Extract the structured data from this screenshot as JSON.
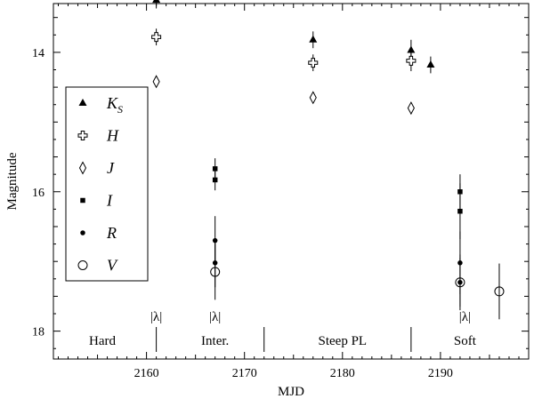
{
  "chart_data": {
    "type": "scatter",
    "xlabel": "MJD",
    "ylabel": "Magnitude",
    "xlim": [
      2150.5,
      2199
    ],
    "ylim": [
      18.4,
      13.3
    ],
    "y_inverted": true,
    "x_ticks": [
      2160,
      2170,
      2180,
      2190
    ],
    "y_ticks": [
      14,
      16,
      18
    ],
    "grid": false,
    "legend_placement": "left",
    "series": [
      {
        "name": "K",
        "subscript": "S",
        "marker": "filled-triangle",
        "points": [
          {
            "x": 2161,
            "y": 13.25,
            "err": 0.12
          },
          {
            "x": 2177,
            "y": 13.82,
            "err": 0.12
          },
          {
            "x": 2187,
            "y": 13.97,
            "err": 0.15
          },
          {
            "x": 2189,
            "y": 14.18,
            "err": 0.12
          }
        ]
      },
      {
        "name": "H",
        "marker": "open-cross",
        "points": [
          {
            "x": 2161,
            "y": 13.78,
            "err": 0.12
          },
          {
            "x": 2177,
            "y": 14.15,
            "err": 0.12
          },
          {
            "x": 2187,
            "y": 14.12,
            "err": 0.15
          }
        ]
      },
      {
        "name": "J",
        "marker": "open-diamond",
        "points": [
          {
            "x": 2161,
            "y": 14.42,
            "err": 0
          },
          {
            "x": 2177,
            "y": 14.65,
            "err": 0
          },
          {
            "x": 2187,
            "y": 14.8,
            "err": 0
          }
        ]
      },
      {
        "name": "I",
        "marker": "filled-square",
        "points": [
          {
            "x": 2167,
            "y": 15.67,
            "err": 0.15
          },
          {
            "x": 2167,
            "y": 15.83,
            "err": 0.15
          },
          {
            "x": 2192,
            "y": 16.0,
            "err": 0.25
          },
          {
            "x": 2192,
            "y": 16.28,
            "err": 0.4
          }
        ]
      },
      {
        "name": "R",
        "marker": "filled-circle",
        "points": [
          {
            "x": 2167,
            "y": 16.7,
            "err": 0.35
          },
          {
            "x": 2167,
            "y": 17.02,
            "err": 0.35
          },
          {
            "x": 2192,
            "y": 17.02,
            "err": 0.45
          },
          {
            "x": 2192,
            "y": 17.3,
            "err": 0.35
          }
        ]
      },
      {
        "name": "V",
        "marker": "open-circle",
        "points": [
          {
            "x": 2167,
            "y": 17.15,
            "err": 0.4
          },
          {
            "x": 2192,
            "y": 17.3,
            "err": 0.4
          },
          {
            "x": 2196,
            "y": 17.43,
            "err": 0.4
          }
        ]
      }
    ],
    "state_labels": [
      {
        "text": "Hard",
        "x": 2155.5
      },
      {
        "text": "Inter.",
        "x": 2167
      },
      {
        "text": "Steep PL",
        "x": 2180
      },
      {
        "text": "Soft",
        "x": 2192.5
      }
    ],
    "state_boundaries": [
      2161,
      2172,
      2187
    ],
    "lambda_markers": [
      {
        "text": "|λ|",
        "x": 2161
      },
      {
        "text": "|λ|",
        "x": 2167
      },
      {
        "text": "|λ|",
        "x": 2192.5
      }
    ]
  }
}
